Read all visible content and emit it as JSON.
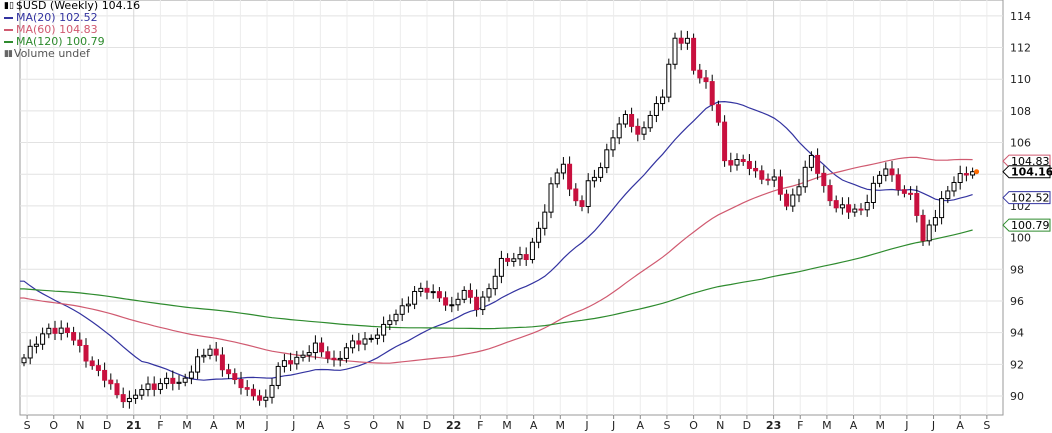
{
  "chart_data": {
    "type": "candlestick",
    "symbol_line": "$USD (Weekly) 104.16",
    "legend": [
      {
        "label": "MA(20) 102.52",
        "color": "#3333a0"
      },
      {
        "label": "MA(60) 104.83",
        "color": "#d05a70"
      },
      {
        "label": "MA(120) 100.79",
        "color": "#2e8b2e"
      },
      {
        "label": "Volume undef",
        "color": "#666666"
      }
    ],
    "ylim": [
      88.8,
      115.0
    ],
    "y_ticks": [
      90,
      92,
      94,
      96,
      98,
      100,
      102,
      104,
      106,
      108,
      110,
      112,
      114
    ],
    "x_ticks": [
      {
        "week": 0.5,
        "label": "S",
        "bold": false
      },
      {
        "week": 4.8,
        "label": "O",
        "bold": false
      },
      {
        "week": 9.1,
        "label": "N",
        "bold": false
      },
      {
        "week": 13.4,
        "label": "D",
        "bold": false
      },
      {
        "week": 17.7,
        "label": "21",
        "bold": true
      },
      {
        "week": 22,
        "label": "F",
        "bold": false
      },
      {
        "week": 26.3,
        "label": "M",
        "bold": false
      },
      {
        "week": 30.6,
        "label": "A",
        "bold": false
      },
      {
        "week": 34.9,
        "label": "M",
        "bold": false
      },
      {
        "week": 39.2,
        "label": "J",
        "bold": false
      },
      {
        "week": 43.5,
        "label": "J",
        "bold": false
      },
      {
        "week": 47.8,
        "label": "A",
        "bold": false
      },
      {
        "week": 52.1,
        "label": "S",
        "bold": false
      },
      {
        "week": 56.4,
        "label": "O",
        "bold": false
      },
      {
        "week": 60.7,
        "label": "N",
        "bold": false
      },
      {
        "week": 65,
        "label": "D",
        "bold": false
      },
      {
        "week": 69.3,
        "label": "22",
        "bold": true
      },
      {
        "week": 73.6,
        "label": "F",
        "bold": false
      },
      {
        "week": 77.9,
        "label": "M",
        "bold": false
      },
      {
        "week": 82.2,
        "label": "A",
        "bold": false
      },
      {
        "week": 86.5,
        "label": "M",
        "bold": false
      },
      {
        "week": 90.8,
        "label": "J",
        "bold": false
      },
      {
        "week": 95.1,
        "label": "J",
        "bold": false
      },
      {
        "week": 99.4,
        "label": "A",
        "bold": false
      },
      {
        "week": 103.7,
        "label": "S",
        "bold": false
      },
      {
        "week": 108,
        "label": "O",
        "bold": false
      },
      {
        "week": 112.3,
        "label": "N",
        "bold": false
      },
      {
        "week": 116.6,
        "label": "D",
        "bold": false
      },
      {
        "week": 120.9,
        "label": "23",
        "bold": true
      },
      {
        "week": 125.2,
        "label": "F",
        "bold": false
      },
      {
        "week": 129.5,
        "label": "M",
        "bold": false
      },
      {
        "week": 133.8,
        "label": "A",
        "bold": false
      },
      {
        "week": 138.1,
        "label": "M",
        "bold": false
      },
      {
        "week": 142.4,
        "label": "J",
        "bold": false
      },
      {
        "week": 146.7,
        "label": "J",
        "bold": false
      },
      {
        "week": 151,
        "label": "A",
        "bold": false
      },
      {
        "week": 155.3,
        "label": "S",
        "bold": false
      }
    ],
    "last_close": 104.16,
    "ma_tags": [
      {
        "label": "104.83",
        "value": 104.83,
        "color": "#d05a70"
      },
      {
        "label": "102.52",
        "value": 102.52,
        "color": "#3333a0"
      },
      {
        "label": "100.79",
        "value": 100.79,
        "color": "#2e8b2e"
      }
    ],
    "close_tag": {
      "label": "104.16",
      "value": 104.16
    },
    "anchors": [
      [
        0,
        92.4
      ],
      [
        2,
        93.3
      ],
      [
        4,
        94.4
      ],
      [
        7,
        93.9
      ],
      [
        9,
        93.1
      ],
      [
        12,
        91.4
      ],
      [
        15,
        90.2
      ],
      [
        17,
        89.7
      ],
      [
        20,
        90.6
      ],
      [
        23,
        91.0
      ],
      [
        25,
        90.6
      ],
      [
        28,
        92.4
      ],
      [
        30,
        92.8
      ],
      [
        33,
        91.5
      ],
      [
        36,
        90.1
      ],
      [
        39,
        89.9
      ],
      [
        41,
        91.7
      ],
      [
        44,
        92.5
      ],
      [
        47,
        93.0
      ],
      [
        50,
        92.3
      ],
      [
        53,
        93.2
      ],
      [
        56,
        93.8
      ],
      [
        58,
        94.2
      ],
      [
        61,
        95.7
      ],
      [
        63,
        96.5
      ],
      [
        65,
        96.6
      ],
      [
        67,
        96.4
      ],
      [
        69,
        95.5
      ],
      [
        71,
        96.6
      ],
      [
        73,
        95.8
      ],
      [
        75,
        96.6
      ],
      [
        77,
        98.5
      ],
      [
        79,
        98.9
      ],
      [
        81,
        98.6
      ],
      [
        83,
        100.5
      ],
      [
        85,
        103.4
      ],
      [
        87,
        104.6
      ],
      [
        88,
        102.8
      ],
      [
        90,
        102.2
      ],
      [
        91,
        103.5
      ],
      [
        93,
        104.2
      ],
      [
        95,
        106.6
      ],
      [
        97,
        107.8
      ],
      [
        99,
        106.2
      ],
      [
        101,
        107.9
      ],
      [
        103,
        109.0
      ],
      [
        105,
        112.4
      ],
      [
        107,
        112.6
      ],
      [
        108,
        110.7
      ],
      [
        110,
        109.5
      ],
      [
        112,
        107.4
      ],
      [
        113,
        104.9
      ],
      [
        115,
        104.7
      ],
      [
        117,
        104.5
      ],
      [
        119,
        103.9
      ],
      [
        121,
        103.5
      ],
      [
        123,
        102.0
      ],
      [
        125,
        103.5
      ],
      [
        127,
        105.0
      ],
      [
        129,
        103.2
      ],
      [
        131,
        102.0
      ],
      [
        133,
        101.6
      ],
      [
        135,
        101.8
      ],
      [
        137,
        103.3
      ],
      [
        139,
        104.3
      ],
      [
        141,
        103.3
      ],
      [
        143,
        102.6
      ],
      [
        144,
        101.4
      ],
      [
        145,
        99.6
      ],
      [
        146,
        100.8
      ],
      [
        148,
        102.4
      ],
      [
        150,
        103.4
      ],
      [
        152,
        104.2
      ],
      [
        153,
        104.16
      ]
    ]
  }
}
